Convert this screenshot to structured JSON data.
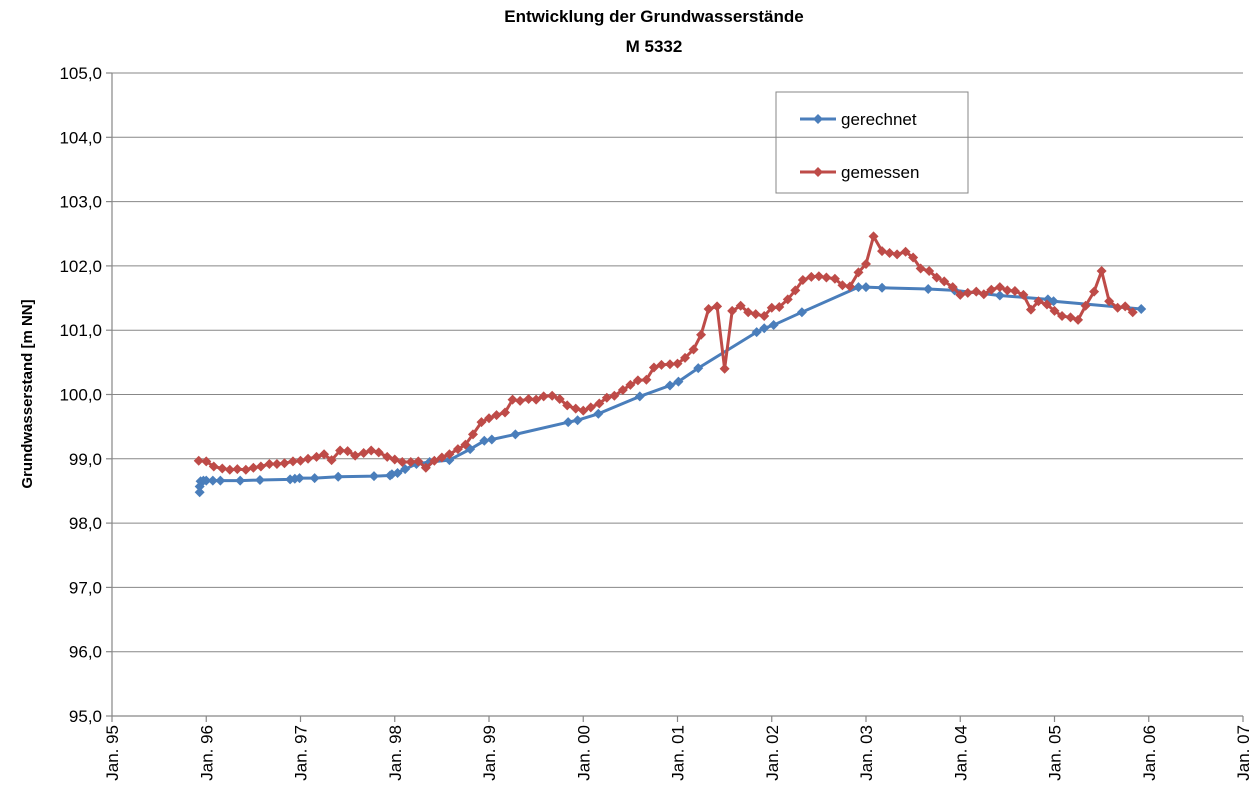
{
  "chart_data": {
    "type": "line",
    "title": "Entwicklung der Grundwasserstände",
    "subtitle": "M 5332",
    "ylabel": "Grundwasserstand [m NN]",
    "xlim": [
      1995,
      2007
    ],
    "xticks": [
      {
        "value": 1995,
        "label": "Jan. 95"
      },
      {
        "value": 1996,
        "label": "Jan. 96"
      },
      {
        "value": 1997,
        "label": "Jan. 97"
      },
      {
        "value": 1998,
        "label": "Jan. 98"
      },
      {
        "value": 1999,
        "label": "Jan. 99"
      },
      {
        "value": 2000,
        "label": "Jan. 00"
      },
      {
        "value": 2001,
        "label": "Jan. 01"
      },
      {
        "value": 2002,
        "label": "Jan. 02"
      },
      {
        "value": 2003,
        "label": "Jan. 03"
      },
      {
        "value": 2004,
        "label": "Jan. 04"
      },
      {
        "value": 2005,
        "label": "Jan. 05"
      },
      {
        "value": 2006,
        "label": "Jan. 06"
      },
      {
        "value": 2007,
        "label": "Jan. 07"
      }
    ],
    "ylim": [
      95,
      105
    ],
    "yticks": [
      {
        "value": 95,
        "label": "95,0"
      },
      {
        "value": 96,
        "label": "96,0"
      },
      {
        "value": 97,
        "label": "97,0"
      },
      {
        "value": 98,
        "label": "98,0"
      },
      {
        "value": 99,
        "label": "99,0"
      },
      {
        "value": 100,
        "label": "100,0"
      },
      {
        "value": 101,
        "label": "101,0"
      },
      {
        "value": 102,
        "label": "102,0"
      },
      {
        "value": 103,
        "label": "103,0"
      },
      {
        "value": 104,
        "label": "104,0"
      },
      {
        "value": 105,
        "label": "105,0"
      }
    ],
    "grid": true,
    "series": [
      {
        "name": "gerechnet",
        "color": "#4a7ebb",
        "x": [
          1995.93,
          1995.93,
          1995.94,
          1995.97,
          1996.0,
          1996.07,
          1996.15,
          1996.36,
          1996.57,
          1996.89,
          1996.94,
          1996.99,
          1997.15,
          1997.4,
          1997.78,
          1997.95,
          1997.97,
          1998.03,
          1998.11,
          1998.23,
          1998.37,
          1998.58,
          1998.8,
          1998.95,
          1999.03,
          1999.28,
          1999.84,
          1999.94,
          2000.16,
          2000.6,
          2000.92,
          2001.01,
          2001.22,
          2001.84,
          2001.92,
          2002.02,
          2002.32,
          2002.92,
          2003.0,
          2003.17,
          2003.66,
          2003.94,
          2004.42,
          2004.93,
          2004.99,
          2005.92
        ],
        "values": [
          98.48,
          98.57,
          98.65,
          98.66,
          98.66,
          98.66,
          98.66,
          98.66,
          98.67,
          98.68,
          98.69,
          98.7,
          98.7,
          98.72,
          98.73,
          98.74,
          98.76,
          98.78,
          98.84,
          98.92,
          98.95,
          98.98,
          99.15,
          99.28,
          99.3,
          99.38,
          99.57,
          99.6,
          99.7,
          99.97,
          100.14,
          100.2,
          100.41,
          100.97,
          101.03,
          101.08,
          101.28,
          101.67,
          101.67,
          101.66,
          101.64,
          101.62,
          101.54,
          101.48,
          101.45,
          101.33
        ]
      },
      {
        "name": "gemessen",
        "color": "#be4b48",
        "x": [
          1995.92,
          1996.0,
          1996.08,
          1996.17,
          1996.25,
          1996.33,
          1996.42,
          1996.5,
          1996.58,
          1996.67,
          1996.75,
          1996.83,
          1996.92,
          1997.0,
          1997.08,
          1997.17,
          1997.25,
          1997.33,
          1997.42,
          1997.5,
          1997.58,
          1997.67,
          1997.75,
          1997.83,
          1997.92,
          1998.0,
          1998.08,
          1998.17,
          1998.25,
          1998.33,
          1998.42,
          1998.5,
          1998.58,
          1998.67,
          1998.75,
          1998.83,
          1998.92,
          1999.0,
          1999.08,
          1999.17,
          1999.25,
          1999.33,
          1999.42,
          1999.5,
          1999.58,
          1999.67,
          1999.75,
          1999.83,
          1999.92,
          2000.0,
          2000.08,
          2000.17,
          2000.25,
          2000.33,
          2000.42,
          2000.5,
          2000.58,
          2000.67,
          2000.75,
          2000.83,
          2000.92,
          2001.0,
          2001.08,
          2001.17,
          2001.25,
          2001.33,
          2001.42,
          2001.5,
          2001.58,
          2001.67,
          2001.75,
          2001.83,
          2001.92,
          2002.0,
          2002.08,
          2002.17,
          2002.25,
          2002.33,
          2002.42,
          2002.5,
          2002.58,
          2002.67,
          2002.75,
          2002.83,
          2002.92,
          2003.0,
          2003.08,
          2003.17,
          2003.25,
          2003.33,
          2003.42,
          2003.5,
          2003.58,
          2003.67,
          2003.75,
          2003.83,
          2003.92,
          2004.0,
          2004.08,
          2004.17,
          2004.25,
          2004.33,
          2004.42,
          2004.5,
          2004.58,
          2004.67,
          2004.75,
          2004.83,
          2004.92,
          2005.0,
          2005.08,
          2005.17,
          2005.25,
          2005.33,
          2005.42,
          2005.5,
          2005.58,
          2005.67,
          2005.75,
          2005.83
        ],
        "values": [
          98.97,
          98.96,
          98.88,
          98.85,
          98.83,
          98.84,
          98.83,
          98.86,
          98.88,
          98.92,
          98.92,
          98.93,
          98.96,
          98.97,
          99.0,
          99.03,
          99.07,
          98.98,
          99.13,
          99.12,
          99.05,
          99.09,
          99.13,
          99.1,
          99.03,
          98.99,
          98.95,
          98.95,
          98.96,
          98.86,
          98.97,
          99.02,
          99.07,
          99.15,
          99.22,
          99.38,
          99.57,
          99.63,
          99.68,
          99.72,
          99.92,
          99.9,
          99.93,
          99.92,
          99.97,
          99.98,
          99.93,
          99.83,
          99.78,
          99.75,
          99.8,
          99.86,
          99.95,
          99.98,
          100.07,
          100.15,
          100.22,
          100.23,
          100.42,
          100.46,
          100.47,
          100.48,
          100.57,
          100.7,
          100.93,
          101.33,
          101.37,
          100.4,
          101.3,
          101.38,
          101.28,
          101.25,
          101.22,
          101.35,
          101.36,
          101.48,
          101.62,
          101.78,
          101.83,
          101.84,
          101.82,
          101.8,
          101.7,
          101.68,
          101.9,
          102.03,
          102.46,
          102.23,
          102.2,
          102.18,
          102.22,
          102.13,
          101.96,
          101.92,
          101.82,
          101.76,
          101.67,
          101.55,
          101.58,
          101.6,
          101.56,
          101.63,
          101.67,
          101.62,
          101.61,
          101.55,
          101.32,
          101.45,
          101.4,
          101.3,
          101.22,
          101.2,
          101.16,
          101.38,
          101.6,
          101.92,
          101.45,
          101.35,
          101.37,
          101.28
        ]
      }
    ]
  }
}
